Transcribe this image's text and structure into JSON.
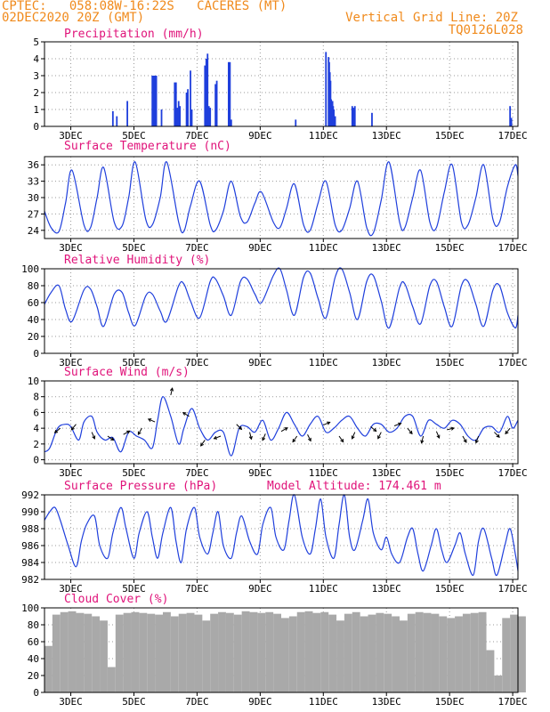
{
  "header": {
    "station": "CPTEC:   058:08W-16:22S   CACERES (MT)",
    "run": "02DEC2020 20Z (GMT)",
    "grid_note": "Vertical Grid Line: 20Z",
    "code": "TQ0126L028"
  },
  "colors": {
    "header": "#f08a1c",
    "title": "#e0137a",
    "line": "#1f3fdc",
    "bar": "#1f3fdc",
    "cloud": "#a9a9a9",
    "arrow": "#000000"
  },
  "x_axis": {
    "start_hour": 0,
    "end_hour": 360,
    "tick_hours": [
      20,
      68,
      116,
      164,
      212,
      260,
      308,
      356
    ],
    "tick_labels": [
      "3DEC",
      "5DEC",
      "7DEC",
      "9DEC",
      "11DEC",
      "13DEC",
      "15DEC",
      "17DEC"
    ]
  },
  "chart_data": [
    {
      "type": "bar",
      "title": "Precipitation  (mm/h)",
      "ylim": [
        0,
        5
      ],
      "yticks": [
        0,
        1,
        2,
        3,
        4,
        5
      ],
      "x_hours": [
        52,
        55,
        63,
        82,
        83,
        84,
        85,
        89,
        99,
        100,
        101,
        102,
        103,
        108,
        109,
        111,
        112,
        122,
        123,
        124,
        125,
        126,
        130,
        131,
        140,
        141,
        142,
        191,
        214,
        216,
        216.5,
        217,
        217.5,
        218,
        218.5,
        219,
        219.5,
        220,
        221,
        234,
        235,
        236,
        249,
        354,
        355
      ],
      "values": [
        0.9,
        0.6,
        1.5,
        3.0,
        3.0,
        3.0,
        3.0,
        1.0,
        2.6,
        2.6,
        1.1,
        1.5,
        1.2,
        2.0,
        2.2,
        3.3,
        1.0,
        3.6,
        4.0,
        4.3,
        1.2,
        1.1,
        2.5,
        2.7,
        3.8,
        3.8,
        0.4,
        0.4,
        4.4,
        4.1,
        3.8,
        3.2,
        2.7,
        1.6,
        1.3,
        1.5,
        1.2,
        1.0,
        0.6,
        1.2,
        1.1,
        1.2,
        0.8,
        1.2,
        0.5
      ]
    },
    {
      "type": "line",
      "title": "Surface Temperature  (nC)",
      "ylim": [
        22.5,
        37.5
      ],
      "yticks": [
        24,
        27,
        30,
        33,
        36
      ],
      "x_hours": [
        0,
        5,
        11,
        16,
        21,
        30,
        35,
        40,
        45,
        53,
        59,
        64,
        69,
        77,
        82,
        88,
        93,
        102,
        106,
        111,
        118,
        126,
        130,
        136,
        142,
        149,
        154,
        160,
        165,
        174,
        179,
        184,
        190,
        197,
        202,
        208,
        214,
        221,
        226,
        232,
        238,
        245,
        250,
        256,
        262,
        270,
        274,
        280,
        286,
        293,
        298,
        304,
        310,
        317,
        322,
        328,
        334,
        341,
        346,
        352,
        358,
        360
      ],
      "values": [
        27.5,
        24.5,
        23.8,
        29.0,
        35.0,
        25.0,
        24.5,
        30.0,
        35.5,
        25.5,
        24.8,
        30.0,
        36.5,
        26.0,
        25.0,
        30.0,
        36.5,
        25.5,
        23.8,
        28.5,
        33.0,
        25.0,
        24.0,
        27.5,
        33.0,
        26.5,
        25.5,
        29.0,
        31.0,
        25.5,
        24.5,
        28.0,
        32.5,
        25.0,
        24.0,
        29.0,
        33.0,
        25.0,
        24.0,
        28.0,
        33.0,
        24.5,
        23.5,
        29.5,
        36.5,
        25.5,
        24.5,
        30.0,
        35.0,
        25.5,
        24.5,
        31.0,
        36.0,
        25.5,
        25.0,
        30.0,
        36.0,
        26.0,
        25.5,
        32.0,
        36.0,
        34.0
      ]
    },
    {
      "type": "line",
      "title": "Relative Humidity  (%)",
      "ylim": [
        0,
        100
      ],
      "yticks": [
        0,
        20,
        40,
        60,
        80,
        100
      ],
      "x_hours": [
        0,
        5,
        11,
        16,
        21,
        30,
        35,
        40,
        45,
        53,
        59,
        64,
        69,
        77,
        82,
        88,
        93,
        102,
        106,
        111,
        118,
        126,
        130,
        136,
        142,
        149,
        154,
        160,
        165,
        174,
        179,
        184,
        190,
        197,
        202,
        208,
        214,
        221,
        226,
        232,
        238,
        245,
        250,
        256,
        262,
        270,
        274,
        280,
        286,
        293,
        298,
        304,
        310,
        317,
        322,
        328,
        334,
        341,
        346,
        352,
        358,
        360
      ],
      "values": [
        58,
        72,
        80,
        52,
        38,
        75,
        76,
        55,
        32,
        70,
        72,
        48,
        33,
        68,
        70,
        50,
        38,
        80,
        82,
        62,
        42,
        85,
        88,
        68,
        45,
        85,
        88,
        70,
        60,
        92,
        100,
        75,
        45,
        90,
        95,
        65,
        42,
        90,
        100,
        72,
        40,
        85,
        92,
        62,
        30,
        78,
        82,
        55,
        35,
        80,
        85,
        55,
        32,
        80,
        85,
        58,
        32,
        75,
        80,
        48,
        30,
        45
      ]
    },
    {
      "type": "line",
      "title": "Surface Wind  (m/s)",
      "ylim": [
        -0.5,
        10
      ],
      "yticks": [
        0,
        2,
        4,
        6,
        8,
        10
      ],
      "x_hours": [
        0,
        4,
        10,
        16,
        20,
        26,
        30,
        36,
        40,
        46,
        52,
        58,
        64,
        70,
        76,
        82,
        86,
        90,
        96,
        102,
        106,
        112,
        118,
        124,
        130,
        136,
        142,
        148,
        154,
        160,
        166,
        172,
        178,
        184,
        190,
        196,
        202,
        208,
        214,
        220,
        226,
        232,
        238,
        244,
        250,
        256,
        262,
        268,
        274,
        280,
        286,
        292,
        298,
        304,
        310,
        316,
        322,
        328,
        334,
        340,
        346,
        352,
        356,
        360
      ],
      "values": [
        1.0,
        1.5,
        4.0,
        4.5,
        4.2,
        2.5,
        4.8,
        5.5,
        3.5,
        2.5,
        2.8,
        1.0,
        3.5,
        3.0,
        2.5,
        1.5,
        5.0,
        8.0,
        5.5,
        2.0,
        4.0,
        6.5,
        4.0,
        2.5,
        3.5,
        3.5,
        0.5,
        4.0,
        4.2,
        3.5,
        5.0,
        2.5,
        4.0,
        6.0,
        4.5,
        3.0,
        4.5,
        5.5,
        3.5,
        4.0,
        5.0,
        5.5,
        4.0,
        3.0,
        4.5,
        4.5,
        3.5,
        4.0,
        5.5,
        5.5,
        3.0,
        5.0,
        4.5,
        4.0,
        5.0,
        4.5,
        3.0,
        2.5,
        4.0,
        4.2,
        3.5,
        5.5,
        4.0,
        5.0
      ],
      "arrows": [
        {
          "hour": 12,
          "speed": 4.0,
          "dx": -6,
          "dy": 5
        },
        {
          "hour": 24,
          "speed": 4.5,
          "dx": -5,
          "dy": 6
        },
        {
          "hour": 36,
          "speed": 3.5,
          "dx": 3,
          "dy": 7
        },
        {
          "hour": 48,
          "speed": 3.0,
          "dx": 6,
          "dy": 4
        },
        {
          "hour": 60,
          "speed": 3.2,
          "dx": 7,
          "dy": -4
        },
        {
          "hour": 74,
          "speed": 4.0,
          "dx": -4,
          "dy": 7
        },
        {
          "hour": 84,
          "speed": 4.8,
          "dx": -7,
          "dy": -3
        },
        {
          "hour": 96,
          "speed": 8.2,
          "dx": 2,
          "dy": -9
        },
        {
          "hour": 110,
          "speed": 5.5,
          "dx": -8,
          "dy": -5
        },
        {
          "hour": 122,
          "speed": 2.5,
          "dx": -5,
          "dy": 7
        },
        {
          "hour": 134,
          "speed": 3.0,
          "dx": -8,
          "dy": 3
        },
        {
          "hour": 146,
          "speed": 4.5,
          "dx": 6,
          "dy": 6
        },
        {
          "hour": 156,
          "speed": 3.5,
          "dx": 2,
          "dy": 8
        },
        {
          "hour": 168,
          "speed": 3.3,
          "dx": -3,
          "dy": 7
        },
        {
          "hour": 180,
          "speed": 3.6,
          "dx": 7,
          "dy": -4
        },
        {
          "hour": 192,
          "speed": 3.0,
          "dx": -5,
          "dy": 7
        },
        {
          "hour": 200,
          "speed": 3.2,
          "dx": 4,
          "dy": 8
        },
        {
          "hour": 212,
          "speed": 4.4,
          "dx": 7,
          "dy": -3
        },
        {
          "hour": 224,
          "speed": 3.0,
          "dx": 5,
          "dy": 7
        },
        {
          "hour": 236,
          "speed": 3.5,
          "dx": -3,
          "dy": 7
        },
        {
          "hour": 248,
          "speed": 4.2,
          "dx": 6,
          "dy": 5
        },
        {
          "hour": 256,
          "speed": 3.5,
          "dx": -3,
          "dy": 6
        },
        {
          "hour": 266,
          "speed": 4.3,
          "dx": 8,
          "dy": -3
        },
        {
          "hour": 276,
          "speed": 4.0,
          "dx": 5,
          "dy": 6
        },
        {
          "hour": 288,
          "speed": 3.0,
          "dx": -2,
          "dy": 8
        },
        {
          "hour": 298,
          "speed": 3.6,
          "dx": 3,
          "dy": 7
        },
        {
          "hour": 306,
          "speed": 3.8,
          "dx": 8,
          "dy": -2
        },
        {
          "hour": 318,
          "speed": 3.0,
          "dx": 4,
          "dy": 7
        },
        {
          "hour": 330,
          "speed": 3.0,
          "dx": -3,
          "dy": 8
        },
        {
          "hour": 342,
          "speed": 3.5,
          "dx": 6,
          "dy": 6
        },
        {
          "hour": 354,
          "speed": 4.0,
          "dx": -5,
          "dy": 6
        }
      ]
    },
    {
      "type": "line",
      "title": "Surface Pressure  (hPa)",
      "annotation": "Model Altitude: 174.461  m",
      "ylim": [
        982,
        992
      ],
      "yticks": [
        982,
        984,
        986,
        988,
        990,
        992
      ],
      "x_hours": [
        0,
        4,
        8,
        12,
        18,
        24,
        28,
        32,
        38,
        42,
        48,
        52,
        58,
        62,
        68,
        72,
        78,
        82,
        86,
        90,
        96,
        100,
        104,
        108,
        114,
        118,
        124,
        128,
        132,
        136,
        142,
        146,
        150,
        156,
        162,
        166,
        172,
        176,
        182,
        186,
        190,
        196,
        202,
        206,
        210,
        214,
        220,
        224,
        228,
        232,
        236,
        242,
        246,
        250,
        256,
        260,
        264,
        270,
        276,
        280,
        284,
        288,
        294,
        298,
        302,
        306,
        312,
        316,
        320,
        326,
        330,
        334,
        340,
        344,
        350,
        354,
        358,
        360
      ],
      "values": [
        989.0,
        990.0,
        990.5,
        989.0,
        986.0,
        983.5,
        986.5,
        988.5,
        989.5,
        986.0,
        984.5,
        987.5,
        990.5,
        988.0,
        984.5,
        987.5,
        990.0,
        987.0,
        984.5,
        987.5,
        990.5,
        986.5,
        984.0,
        988.0,
        990.5,
        987.0,
        985.0,
        987.5,
        990.0,
        986.0,
        984.5,
        987.5,
        989.5,
        986.5,
        985.0,
        988.5,
        990.5,
        987.0,
        985.5,
        989.0,
        992.0,
        987.0,
        985.0,
        988.0,
        991.5,
        987.0,
        984.5,
        988.5,
        992.0,
        987.0,
        985.5,
        989.0,
        991.5,
        987.5,
        985.5,
        987.0,
        985.0,
        984.0,
        987.0,
        988.0,
        985.0,
        983.0,
        986.0,
        988.0,
        985.5,
        984.0,
        986.0,
        987.5,
        985.0,
        982.5,
        986.5,
        988.0,
        984.5,
        982.5,
        986.0,
        988.0,
        985.0,
        983.0
      ]
    },
    {
      "type": "bar",
      "title": "Cloud Cover  (%)",
      "ylim": [
        0,
        100
      ],
      "yticks": [
        0,
        20,
        40,
        60,
        80,
        100
      ],
      "x_hours": [
        0,
        6,
        12,
        18,
        24,
        30,
        36,
        42,
        48,
        54,
        60,
        66,
        72,
        78,
        84,
        90,
        96,
        102,
        108,
        114,
        120,
        126,
        132,
        138,
        144,
        150,
        156,
        162,
        168,
        174,
        180,
        186,
        192,
        198,
        204,
        210,
        216,
        222,
        228,
        234,
        240,
        246,
        252,
        258,
        264,
        270,
        276,
        282,
        288,
        294,
        300,
        306,
        312,
        318,
        324,
        330,
        336,
        342,
        348,
        354,
        360
      ],
      "values": [
        55,
        92,
        95,
        96,
        94,
        93,
        90,
        85,
        30,
        92,
        94,
        95,
        94,
        93,
        92,
        95,
        90,
        93,
        94,
        92,
        85,
        93,
        95,
        94,
        92,
        96,
        95,
        94,
        95,
        93,
        88,
        90,
        95,
        96,
        94,
        95,
        92,
        85,
        93,
        95,
        90,
        92,
        94,
        93,
        90,
        85,
        93,
        95,
        94,
        93,
        90,
        88,
        90,
        93,
        94,
        95,
        50,
        20,
        88,
        92,
        90
      ]
    }
  ]
}
